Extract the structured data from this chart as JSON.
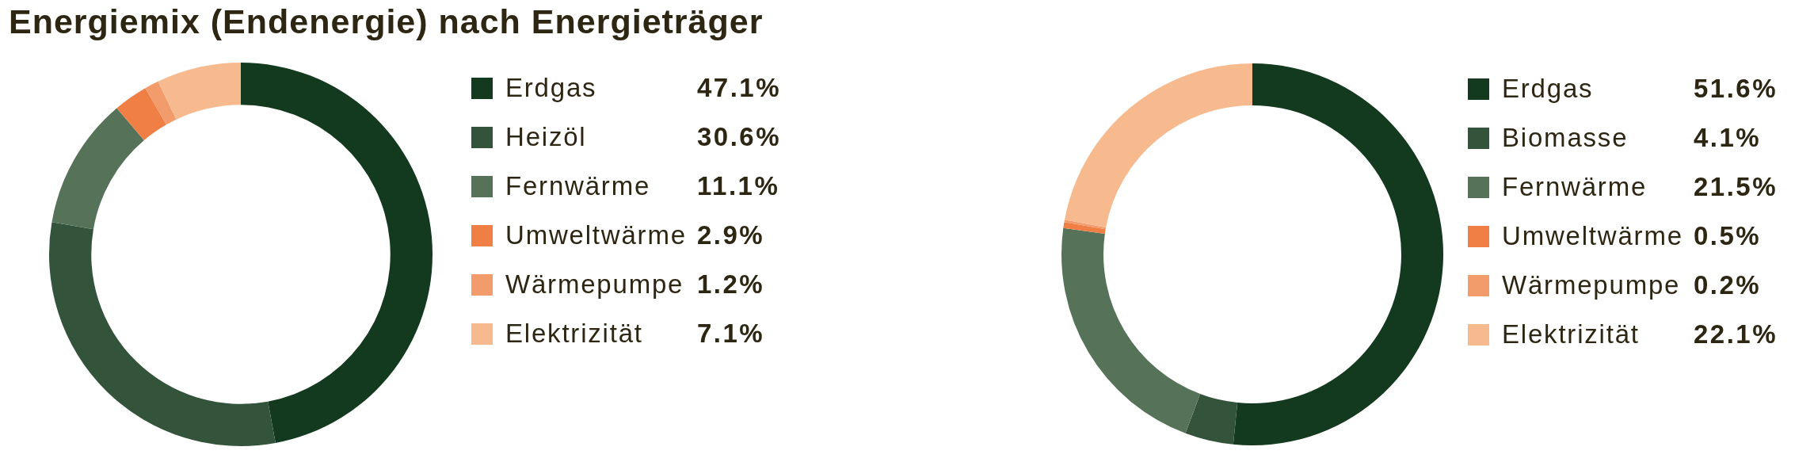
{
  "chart_data": [
    {
      "type": "donut",
      "title": "Energiemix (Endenergie) nach Energieträger",
      "categories": [
        "Erdgas",
        "Heizöl",
        "Fernwärme",
        "Umweltwärme",
        "Wärmepumpe",
        "Elektrizität"
      ],
      "values": [
        47.1,
        30.6,
        11.1,
        2.9,
        1.2,
        7.1
      ],
      "value_labels": [
        "47.1%",
        "30.6%",
        "11.1%",
        "2.9%",
        "1.2%",
        "7.1%"
      ],
      "colors": [
        "#133a1e",
        "#34533b",
        "#567259",
        "#ef7f45",
        "#f29b6b",
        "#f7ba8f"
      ],
      "legend": "right"
    },
    {
      "type": "donut",
      "categories": [
        "Erdgas",
        "Biomasse",
        "Fernwärme",
        "Umweltwärme",
        "Wärmepumpe",
        "Elektrizität"
      ],
      "values": [
        51.6,
        4.1,
        21.5,
        0.5,
        0.2,
        22.1
      ],
      "value_labels": [
        "51.6%",
        "4.1%",
        "21.5%",
        "0.5%",
        "0.2%",
        "22.1%"
      ],
      "colors": [
        "#133a1e",
        "#34533b",
        "#567259",
        "#ef7f45",
        "#f29b6b",
        "#f7ba8f"
      ],
      "legend": "right"
    }
  ]
}
